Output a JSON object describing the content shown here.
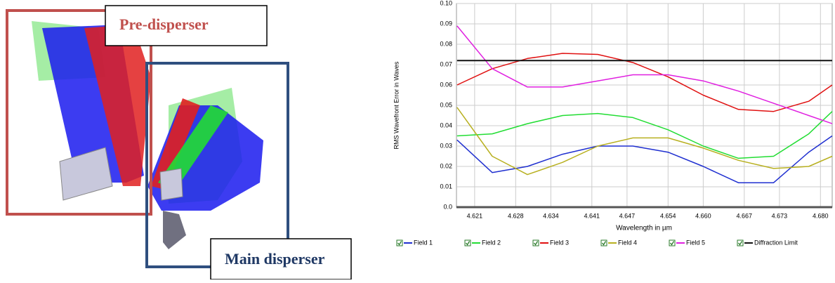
{
  "diagram": {
    "labels": [
      "Pre-disperser",
      "Main disperser"
    ]
  },
  "chart_data": {
    "type": "line",
    "x_label": "Wavelength in µm",
    "y_label": "RMS Wavefront Error in Waves",
    "x": [
      4.618,
      4.624,
      4.63,
      4.636,
      4.642,
      4.648,
      4.654,
      4.66,
      4.666,
      4.672,
      4.678,
      4.682
    ],
    "series": [
      {
        "name": "Field 1",
        "color": "#1f2fd0",
        "values": [
          0.033,
          0.017,
          0.02,
          0.026,
          0.03,
          0.03,
          0.027,
          0.02,
          0.012,
          0.012,
          0.027,
          0.035
        ]
      },
      {
        "name": "Field 2",
        "color": "#22dd33",
        "values": [
          0.035,
          0.036,
          0.041,
          0.045,
          0.046,
          0.044,
          0.038,
          0.03,
          0.024,
          0.025,
          0.036,
          0.047
        ]
      },
      {
        "name": "Field 3",
        "color": "#e01010",
        "values": [
          0.06,
          0.068,
          0.073,
          0.0755,
          0.075,
          0.071,
          0.064,
          0.055,
          0.048,
          0.047,
          0.052,
          0.06
        ]
      },
      {
        "name": "Field 4",
        "color": "#b8b020",
        "values": [
          0.049,
          0.025,
          0.016,
          0.022,
          0.03,
          0.034,
          0.034,
          0.029,
          0.023,
          0.019,
          0.02,
          0.025
        ]
      },
      {
        "name": "Field 5",
        "color": "#e020e0",
        "values": [
          0.089,
          0.068,
          0.059,
          0.059,
          0.062,
          0.065,
          0.065,
          0.062,
          0.057,
          0.051,
          0.045,
          0.041
        ]
      },
      {
        "name": "Diffraction Limit",
        "color": "#111111",
        "values": [
          0.072,
          0.072,
          0.072,
          0.072,
          0.072,
          0.072,
          0.072,
          0.072,
          0.072,
          0.072,
          0.072,
          0.072
        ]
      }
    ],
    "xlim": [
      4.6179,
      4.682
    ],
    "xticks": [
      4.621,
      4.628,
      4.634,
      4.641,
      4.647,
      4.654,
      {
        "value": 4.66,
        "label": "4.660"
      },
      4.667,
      4.673,
      {
        "value": 4.68,
        "label": "4.680"
      }
    ],
    "ylim": [
      0,
      0.1
    ],
    "yticks": [
      {
        "value": 0,
        "label": "0.0"
      },
      0.01,
      0.02,
      0.03,
      0.04,
      0.05,
      0.06,
      0.07,
      0.08,
      0.09,
      {
        "value": 0.1,
        "label": "0.10"
      }
    ],
    "grid": true
  }
}
